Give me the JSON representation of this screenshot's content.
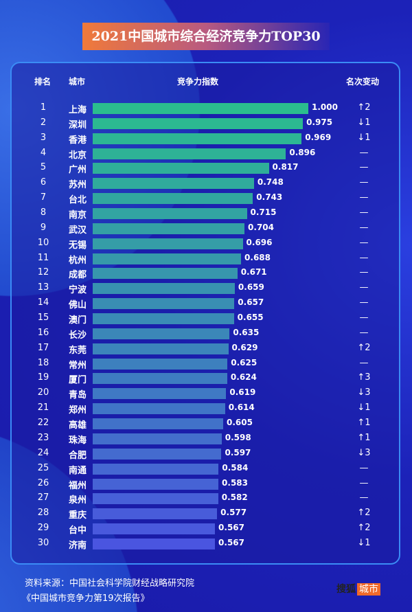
{
  "title": "2021中国城市综合经济竞争力TOP30",
  "headers": {
    "rank": "排名",
    "city": "城市",
    "index": "竞争力指数",
    "change": "名次变动"
  },
  "chart_data": {
    "type": "bar",
    "orientation": "horizontal",
    "title": "2021中国城市综合经济竞争力TOP30",
    "xlim": [
      0,
      1
    ],
    "colors": {
      "top": "#2bbd8e",
      "bottom": "#4a55e0"
    },
    "rows": [
      {
        "rank": "1",
        "city": "上海",
        "value": 1.0,
        "label": "1.000",
        "change": "↑2"
      },
      {
        "rank": "2",
        "city": "深圳",
        "value": 0.975,
        "label": "0.975",
        "change": "↓1"
      },
      {
        "rank": "3",
        "city": "香港",
        "value": 0.969,
        "label": "0.969",
        "change": "↓1"
      },
      {
        "rank": "4",
        "city": "北京",
        "value": 0.896,
        "label": "0.896",
        "change": "—"
      },
      {
        "rank": "5",
        "city": "广州",
        "value": 0.817,
        "label": "0.817",
        "change": "—"
      },
      {
        "rank": "6",
        "city": "苏州",
        "value": 0.748,
        "label": "0.748",
        "change": "—"
      },
      {
        "rank": "7",
        "city": "台北",
        "value": 0.743,
        "label": "0.743",
        "change": "—"
      },
      {
        "rank": "8",
        "city": "南京",
        "value": 0.715,
        "label": "0.715",
        "change": "—"
      },
      {
        "rank": "9",
        "city": "武汉",
        "value": 0.704,
        "label": "0.704",
        "change": "—"
      },
      {
        "rank": "10",
        "city": "无锡",
        "value": 0.696,
        "label": "0.696",
        "change": "—"
      },
      {
        "rank": "11",
        "city": "杭州",
        "value": 0.688,
        "label": "0.688",
        "change": "—"
      },
      {
        "rank": "12",
        "city": "成都",
        "value": 0.671,
        "label": "0.671",
        "change": "—"
      },
      {
        "rank": "13",
        "city": "宁波",
        "value": 0.659,
        "label": "0.659",
        "change": "—"
      },
      {
        "rank": "14",
        "city": "佛山",
        "value": 0.657,
        "label": "0.657",
        "change": "—"
      },
      {
        "rank": "15",
        "city": "澳门",
        "value": 0.655,
        "label": "0.655",
        "change": "—"
      },
      {
        "rank": "16",
        "city": "长沙",
        "value": 0.635,
        "label": "0.635",
        "change": "—"
      },
      {
        "rank": "17",
        "city": "东莞",
        "value": 0.629,
        "label": "0.629",
        "change": "↑2"
      },
      {
        "rank": "18",
        "city": "常州",
        "value": 0.625,
        "label": "0.625",
        "change": "—"
      },
      {
        "rank": "19",
        "city": "厦门",
        "value": 0.624,
        "label": "0.624",
        "change": "↑3"
      },
      {
        "rank": "20",
        "city": "青岛",
        "value": 0.619,
        "label": "0.619",
        "change": "↓3"
      },
      {
        "rank": "21",
        "city": "郑州",
        "value": 0.614,
        "label": "0.614",
        "change": "↓1"
      },
      {
        "rank": "22",
        "city": "高雄",
        "value": 0.605,
        "label": "0.605",
        "change": "↑1"
      },
      {
        "rank": "23",
        "city": "珠海",
        "value": 0.598,
        "label": "0.598",
        "change": "↑1"
      },
      {
        "rank": "24",
        "city": "合肥",
        "value": 0.597,
        "label": "0.597",
        "change": "↓3"
      },
      {
        "rank": "25",
        "city": "南通",
        "value": 0.584,
        "label": "0.584",
        "change": "—"
      },
      {
        "rank": "26",
        "city": "福州",
        "value": 0.583,
        "label": "0.583",
        "change": "—"
      },
      {
        "rank": "27",
        "city": "泉州",
        "value": 0.582,
        "label": "0.582",
        "change": "—"
      },
      {
        "rank": "28",
        "city": "重庆",
        "value": 0.577,
        "label": "0.577",
        "change": "↑2"
      },
      {
        "rank": "29",
        "city": "台中",
        "value": 0.567,
        "label": "0.567",
        "change": "↑2"
      },
      {
        "rank": "30",
        "city": "济南",
        "value": 0.567,
        "label": "0.567",
        "change": "↓1"
      }
    ]
  },
  "source": {
    "line1": "资料来源：中国社会科学院财经战略研究院",
    "line2": "《中国城市竞争力第19次报告》"
  },
  "logo": {
    "brand": "搜狐",
    "tag": "城市"
  }
}
